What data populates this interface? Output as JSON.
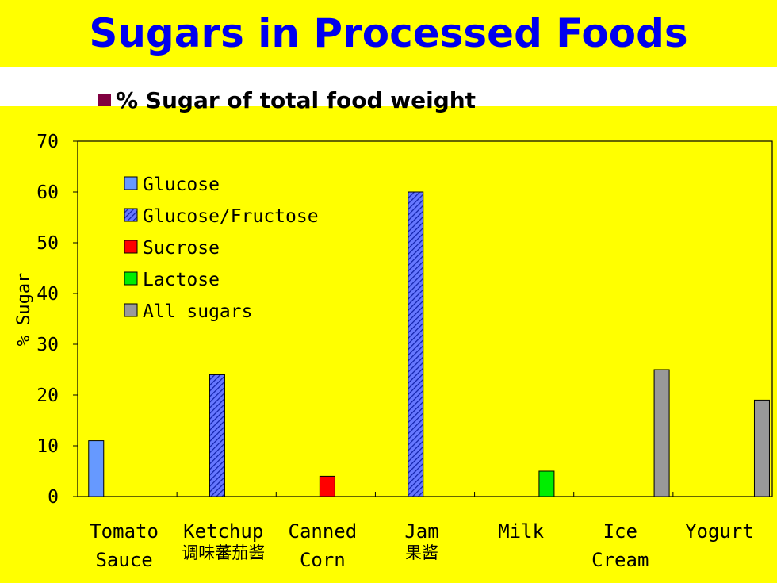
{
  "header": {
    "title": "Sugars in Processed Foods",
    "subtitle": "% Sugar of total food weight"
  },
  "chart_data": {
    "type": "bar",
    "ylabel": "% Sugar",
    "xlabel": "",
    "ylim": [
      0,
      70
    ],
    "yticks": [
      0,
      10,
      20,
      30,
      40,
      50,
      60,
      70
    ],
    "legend_position": "top-left",
    "categories": [
      {
        "label": [
          "Tomato",
          "Sauce"
        ],
        "annotation": ""
      },
      {
        "label": [
          "Ketchup"
        ],
        "annotation": "调味蕃茄酱"
      },
      {
        "label": [
          "Canned",
          "Corn"
        ],
        "annotation": ""
      },
      {
        "label": [
          "Jam"
        ],
        "annotation": "果酱"
      },
      {
        "label": [
          "Milk"
        ],
        "annotation": ""
      },
      {
        "label": [
          "Ice",
          "Cream"
        ],
        "annotation": ""
      },
      {
        "label": [
          "Yogurt"
        ],
        "annotation": ""
      }
    ],
    "series": [
      {
        "name": "Glucose",
        "color": "#6699ff",
        "pattern": "solid",
        "values": [
          11,
          null,
          null,
          null,
          null,
          null,
          null
        ]
      },
      {
        "name": "Glucose/Fructose",
        "color": "#3344dd",
        "pattern": "hatched",
        "values": [
          null,
          24,
          null,
          60,
          null,
          null,
          null
        ]
      },
      {
        "name": "Sucrose",
        "color": "#ff0000",
        "pattern": "solid",
        "values": [
          null,
          null,
          4,
          null,
          null,
          null,
          null
        ]
      },
      {
        "name": "Lactose",
        "color": "#00ee00",
        "pattern": "solid",
        "values": [
          null,
          null,
          null,
          null,
          5,
          null,
          null
        ]
      },
      {
        "name": "All sugars",
        "color": "#999999",
        "pattern": "solid",
        "values": [
          null,
          null,
          null,
          null,
          null,
          25,
          19
        ]
      }
    ]
  }
}
